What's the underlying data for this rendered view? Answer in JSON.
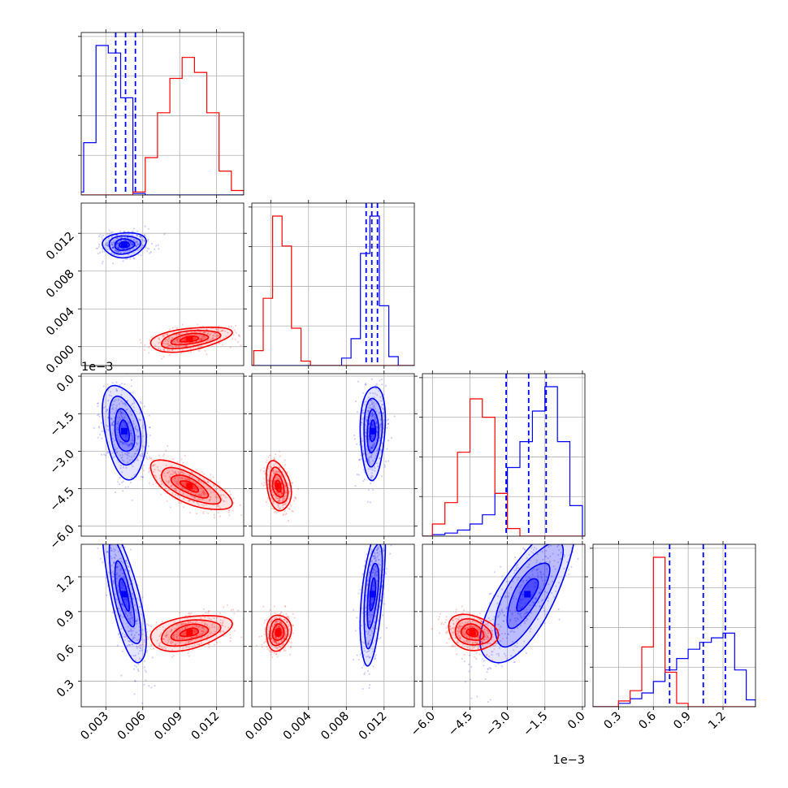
{
  "chart_data": {
    "type": "corner",
    "parameters": [
      {
        "ticks": [
          "0.003",
          "0.006",
          "0.009",
          "0.012"
        ],
        "tick_values": [
          0.003,
          0.006,
          0.009,
          0.012
        ],
        "range": [
          0.001,
          0.0142
        ]
      },
      {
        "ticks": [
          "0.000",
          "0.004",
          "0.008",
          "0.012"
        ],
        "tick_values": [
          0.0,
          0.004,
          0.008,
          0.012
        ],
        "range": [
          -0.002,
          0.0152
        ],
        "offset": ""
      },
      {
        "ticks": [
          "−6.0",
          "−4.5",
          "−3.0",
          "−1.5",
          "0.0"
        ],
        "tick_values": [
          -6.0,
          -4.5,
          -3.0,
          -1.5,
          0.0
        ],
        "range": [
          -6.4,
          0.1
        ],
        "offset": "1e−3"
      },
      {
        "ticks": [
          "0.3",
          "0.6",
          "0.9",
          "1.2"
        ],
        "tick_values": [
          0.3,
          0.6,
          0.9,
          1.2
        ],
        "range": [
          0.08,
          1.48
        ]
      }
    ],
    "colors": {
      "blue": "#0000ff",
      "red": "#ff0000"
    },
    "grid": true,
    "series": [
      {
        "color": "#0000ff",
        "centers": [
          0.0045,
          0.0108,
          -2.2,
          1.05
        ],
        "sigmas": [
          0.0008,
          0.0006,
          0.85,
          0.28
        ],
        "correlations": {
          "0-1": 0.1,
          "0-2": -0.3,
          "0-3": -0.75,
          "1-2": 0.1,
          "1-3": 0.55,
          "2-3": 0.75
        },
        "histograms": [
          {
            "bin_edges": [
              0.0002,
              0.0012,
              0.0022,
              0.0032,
              0.0042,
              0.0052,
              0.0062
            ],
            "counts": [
              0.02,
              0.35,
              1.0,
              0.95,
              0.65,
              0.01
            ]
          },
          {
            "bin_edges": [
              0.0075,
              0.0085,
              0.0095,
              0.0105,
              0.0115,
              0.0125,
              0.0135
            ],
            "counts": [
              0.05,
              0.18,
              0.75,
              1.0,
              0.4,
              0.06
            ]
          },
          {
            "bin_edges": [
              -6.0,
              -5.5,
              -5.0,
              -4.5,
              -4.0,
              -3.5,
              -3.0,
              -2.5,
              -2.0,
              -1.5,
              -1.0,
              -0.5,
              0.0
            ],
            "counts": [
              0.01,
              0.02,
              0.04,
              0.08,
              0.14,
              0.28,
              0.45,
              0.62,
              0.82,
              0.98,
              0.62,
              0.2
            ]
          },
          {
            "bin_edges": [
              0.3,
              0.4,
              0.5,
              0.6,
              0.7,
              0.8,
              0.9,
              1.0,
              1.1,
              1.2,
              1.3,
              1.4,
              1.48
            ],
            "counts": [
              0.03,
              0.07,
              0.12,
              0.22,
              0.32,
              0.42,
              0.5,
              0.56,
              0.6,
              0.64,
              0.32,
              0.06
            ]
          }
        ],
        "quantiles": [
          [
            0.0038,
            0.0046,
            0.0054
          ],
          [
            0.0101,
            0.0107,
            0.0113
          ],
          [
            -3.05,
            -2.15,
            -1.45
          ],
          [
            0.74,
            1.03,
            1.22
          ]
        ]
      },
      {
        "color": "#ff0000",
        "centers": [
          0.0098,
          0.0008,
          -4.4,
          0.72
        ],
        "sigmas": [
          0.0015,
          0.0006,
          0.45,
          0.07
        ],
        "correlations": {
          "0-1": 0.45,
          "0-2": -0.7,
          "0-3": 0.4,
          "1-2": -0.3,
          "1-3": 0.1,
          "2-3": -0.2
        },
        "histograms": [
          {
            "bin_edges": [
              0.0052,
              0.0062,
              0.0072,
              0.0082,
              0.0092,
              0.0102,
              0.0112,
              0.0122,
              0.0132,
              0.0142
            ],
            "counts": [
              0.02,
              0.25,
              0.55,
              0.78,
              0.92,
              0.82,
              0.55,
              0.16,
              0.03
            ]
          },
          {
            "bin_edges": [
              -0.0018,
              -0.0008,
              0.0002,
              0.0012,
              0.0022,
              0.0032,
              0.0042
            ],
            "counts": [
              0.1,
              0.45,
              1.0,
              0.8,
              0.25,
              0.03
            ]
          },
          {
            "bin_edges": [
              -6.0,
              -5.5,
              -5.0,
              -4.5,
              -4.0,
              -3.5,
              -3.0,
              -2.5
            ],
            "counts": [
              0.08,
              0.22,
              0.55,
              0.9,
              0.78,
              0.28,
              0.05
            ]
          },
          {
            "bin_edges": [
              0.3,
              0.4,
              0.5,
              0.6,
              0.7,
              0.8,
              0.9
            ],
            "counts": [
              0.05,
              0.14,
              0.52,
              1.3,
              0.3,
              0.03
            ]
          }
        ]
      }
    ]
  }
}
